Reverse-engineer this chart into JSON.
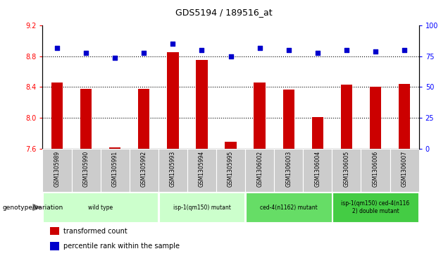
{
  "title": "GDS5194 / 189516_at",
  "samples": [
    "GSM1305989",
    "GSM1305990",
    "GSM1305991",
    "GSM1305992",
    "GSM1305993",
    "GSM1305994",
    "GSM1305995",
    "GSM1306002",
    "GSM1306003",
    "GSM1306004",
    "GSM1306005",
    "GSM1306006",
    "GSM1306007"
  ],
  "bar_values": [
    8.46,
    8.38,
    7.61,
    8.38,
    8.85,
    8.75,
    7.69,
    8.46,
    8.37,
    8.01,
    8.43,
    8.4,
    8.44
  ],
  "dot_values": [
    82,
    78,
    74,
    78,
    85,
    80,
    75,
    82,
    80,
    78,
    80,
    79,
    80
  ],
  "ylim_left": [
    7.6,
    9.2
  ],
  "ylim_right": [
    0,
    100
  ],
  "yticks_left": [
    7.6,
    8.0,
    8.4,
    8.8,
    9.2
  ],
  "yticks_right": [
    0,
    25,
    50,
    75,
    100
  ],
  "bar_color": "#cc0000",
  "dot_color": "#0000cc",
  "groups": [
    {
      "label": "wild type",
      "indices": [
        0,
        1,
        2,
        3
      ],
      "color": "#ccffcc"
    },
    {
      "label": "isp-1(qm150) mutant",
      "indices": [
        4,
        5,
        6
      ],
      "color": "#ccffcc"
    },
    {
      "label": "ced-4(n1162) mutant",
      "indices": [
        7,
        8,
        9
      ],
      "color": "#66dd66"
    },
    {
      "label": "isp-1(qm150) ced-4(n116\n2) double mutant",
      "indices": [
        10,
        11,
        12
      ],
      "color": "#44cc44"
    }
  ],
  "sample_bg": "#cccccc",
  "legend_items": [
    {
      "color": "#cc0000",
      "label": "transformed count"
    },
    {
      "color": "#0000cc",
      "label": "percentile rank within the sample"
    }
  ]
}
